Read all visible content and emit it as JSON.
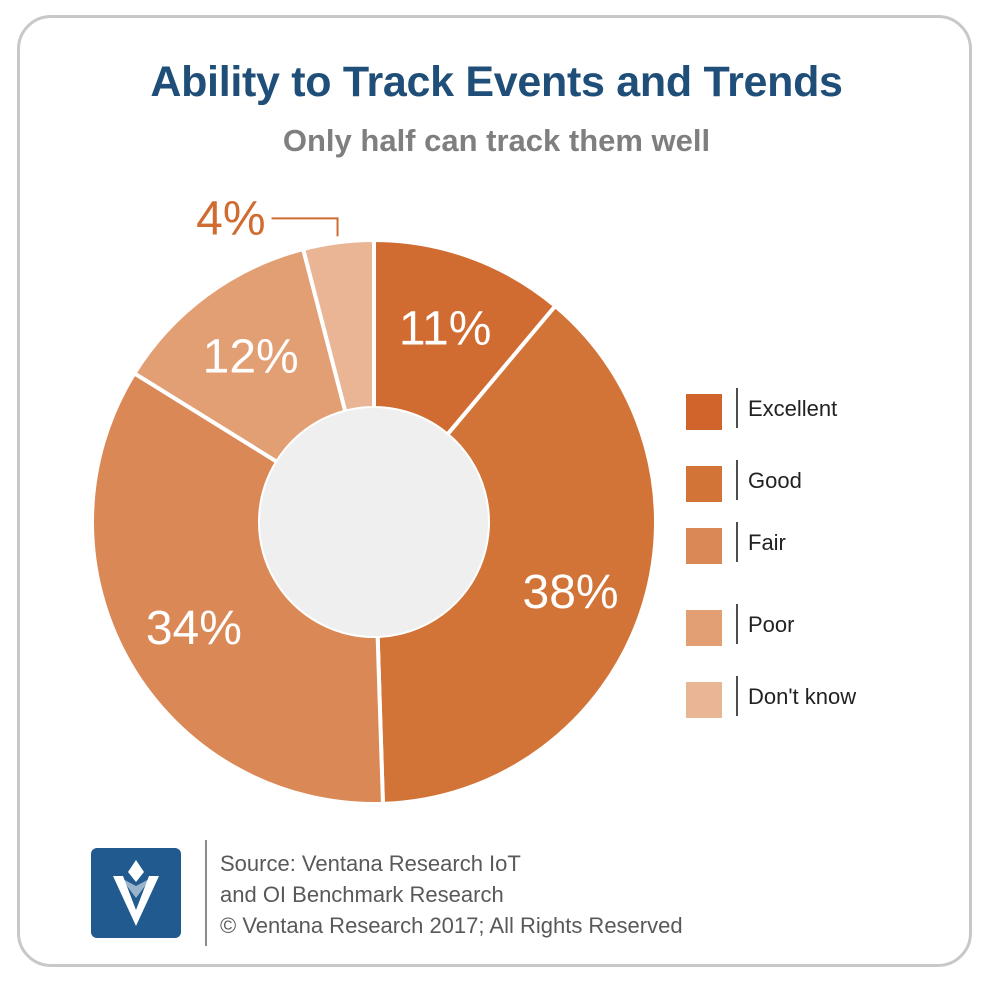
{
  "title": "Ability to Track Events and Trends",
  "subtitle": "Only half can track them well",
  "chart_data": {
    "type": "pie",
    "variant": "donut",
    "categories": [
      "Excellent",
      "Good",
      "Fair",
      "Poor",
      "Don't know"
    ],
    "values": [
      11,
      38,
      34,
      12,
      4
    ],
    "labels": [
      "11%",
      "38%",
      "34%",
      "12%",
      "4%"
    ],
    "colors": [
      "#d06c31",
      "#d27437",
      "#da8856",
      "#e39f74",
      "#e9b595"
    ],
    "label_colors": [
      "#ffffff",
      "#ffffff",
      "#ffffff",
      "#ffffff",
      "#d06c31"
    ],
    "legend_placement": "right"
  },
  "legend": {
    "items": [
      {
        "label": "Excellent",
        "color": "#d0652c"
      },
      {
        "label": "Good",
        "color": "#d27437"
      },
      {
        "label": "Fair",
        "color": "#da8856"
      },
      {
        "label": "Poor",
        "color": "#e39f74"
      },
      {
        "label": "Don't know",
        "color": "#e9b595"
      }
    ]
  },
  "footer": {
    "line1": "Source: Ventana Research IoT",
    "line2": "and OI Benchmark Research",
    "line3": "© Ventana Research 2017; All Rights Reserved",
    "logo_icon": "ventana-v-logo-icon"
  }
}
